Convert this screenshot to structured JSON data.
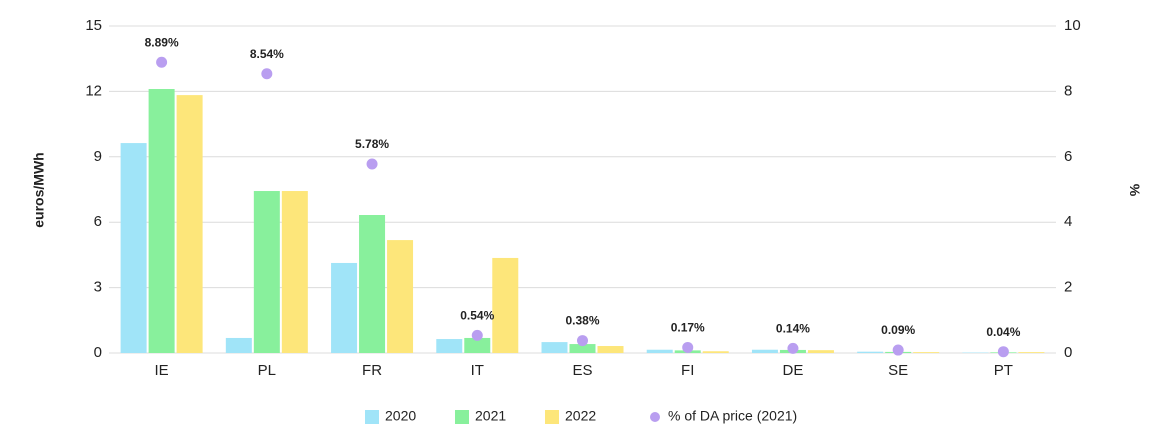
{
  "chart_data": {
    "type": "bar",
    "categories": [
      "IE",
      "PL",
      "FR",
      "IT",
      "ES",
      "FI",
      "DE",
      "SE",
      "PT"
    ],
    "y_label": "euros/MWh",
    "y2_label": "%",
    "series": [
      {
        "name": "2020",
        "color": "#a0e4f8",
        "values": [
          9.63,
          0.69,
          4.13,
          0.64,
          0.5,
          0.15,
          0.15,
          0.06,
          0.02
        ]
      },
      {
        "name": "2021",
        "color": "#88f09c",
        "values": [
          12.11,
          7.43,
          6.33,
          0.69,
          0.41,
          0.12,
          0.14,
          0.05,
          0.03
        ]
      },
      {
        "name": "2022",
        "color": "#fde67a",
        "values": [
          11.83,
          7.43,
          5.18,
          4.36,
          0.32,
          0.08,
          0.13,
          0.04,
          0.04
        ]
      },
      {
        "name": "% of DA price (2021)",
        "color": "#b99ef0",
        "type": "scatter",
        "axis": "y2",
        "values": [
          8.89,
          8.54,
          5.78,
          0.54,
          0.38,
          0.17,
          0.14,
          0.09,
          0.04
        ],
        "value_labels": [
          "8.89%",
          "8.54%",
          "5.78%",
          "0.54%",
          "0.38%",
          "0.17%",
          "0.14%",
          "0.09%",
          "0.04%"
        ]
      }
    ],
    "ylim": [
      0,
      15
    ],
    "yticks": [
      0,
      3,
      6,
      9,
      12,
      15
    ],
    "y2lim": [
      0,
      10
    ],
    "y2ticks": [
      0,
      2,
      4,
      6,
      8,
      10
    ],
    "grid": true
  }
}
